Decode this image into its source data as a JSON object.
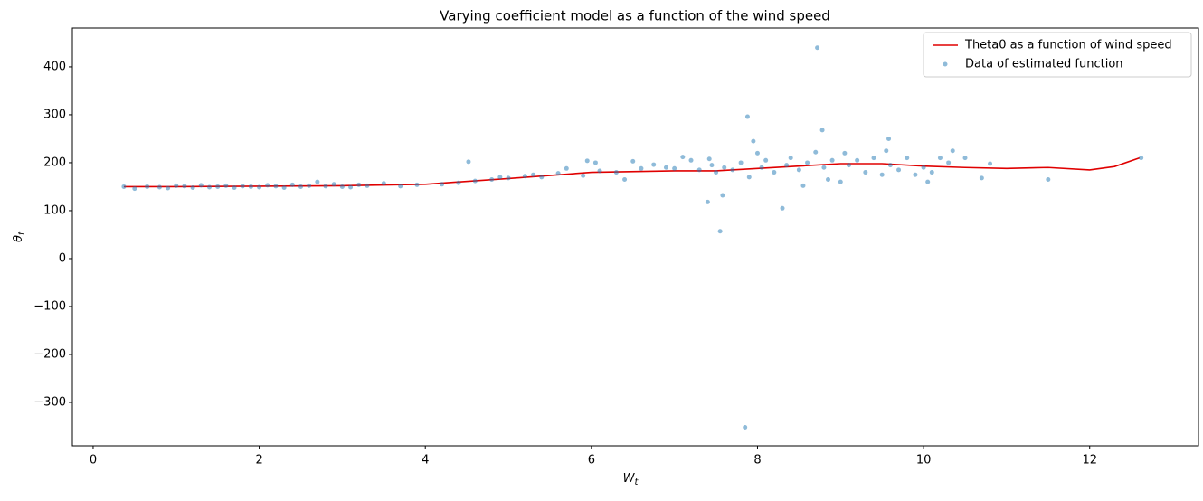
{
  "chart_data": {
    "type": "scatter",
    "title": "Varying coefficient model as a function of the wind speed",
    "xlabel": [
      "W",
      "t"
    ],
    "ylabel": [
      "θ",
      "t"
    ],
    "xlim": [
      -0.25,
      13.31
    ],
    "ylim": [
      -390.6,
      481
    ],
    "xticks": [
      0,
      2,
      4,
      6,
      8,
      10,
      12
    ],
    "yticks": [
      {
        "value": -300,
        "label": "−300"
      },
      {
        "value": -200,
        "label": "−200"
      },
      {
        "value": -100,
        "label": "−100"
      },
      0,
      100,
      200,
      300,
      400
    ],
    "legend": "upper right",
    "series": [
      {
        "name": "Theta0 as a function of wind speed",
        "type": "line",
        "color": "#e00000",
        "x": [
          0.37,
          1,
          2,
          3,
          4,
          5,
          6,
          7,
          7.5,
          8,
          8.5,
          9,
          9.5,
          10,
          10.5,
          11,
          11.5,
          12,
          12.3,
          12.6
        ],
        "values": [
          150,
          150,
          151,
          152,
          155,
          167,
          180,
          183,
          183,
          188,
          193,
          198,
          198,
          193,
          190,
          188,
          190,
          185,
          192,
          210
        ]
      },
      {
        "name": "Data of estimated function",
        "type": "scatter",
        "color": "#1f77b4",
        "x": [
          0.37,
          0.5,
          0.65,
          0.8,
          0.9,
          1.0,
          1.1,
          1.2,
          1.3,
          1.4,
          1.5,
          1.6,
          1.7,
          1.8,
          1.9,
          2.0,
          2.1,
          2.2,
          2.3,
          2.4,
          2.5,
          2.6,
          2.7,
          2.8,
          2.9,
          3.0,
          3.1,
          3.2,
          3.3,
          3.5,
          3.7,
          3.9,
          4.2,
          4.4,
          4.52,
          4.6,
          4.8,
          4.9,
          5.0,
          5.2,
          5.3,
          5.4,
          5.6,
          5.7,
          5.9,
          5.95,
          6.05,
          6.1,
          6.3,
          6.4,
          6.5,
          6.6,
          6.75,
          6.9,
          7.0,
          7.1,
          7.2,
          7.3,
          7.4,
          7.42,
          7.45,
          7.5,
          7.55,
          7.58,
          7.6,
          7.7,
          7.8,
          7.85,
          7.88,
          7.9,
          7.95,
          8.0,
          8.05,
          8.1,
          8.2,
          8.3,
          8.35,
          8.4,
          8.5,
          8.55,
          8.6,
          8.7,
          8.72,
          8.78,
          8.8,
          8.85,
          8.9,
          9.0,
          9.05,
          9.1,
          9.2,
          9.3,
          9.4,
          9.5,
          9.55,
          9.58,
          9.6,
          9.7,
          9.8,
          9.9,
          10.0,
          10.05,
          10.1,
          10.2,
          10.3,
          10.35,
          10.5,
          10.7,
          10.8,
          11.5,
          12.62
        ],
        "values": [
          150,
          146,
          150,
          149,
          147,
          152,
          151,
          148,
          153,
          149,
          150,
          152,
          148,
          151,
          150,
          149,
          153,
          151,
          148,
          154,
          150,
          152,
          160,
          151,
          155,
          150,
          149,
          154,
          152,
          157,
          151,
          154,
          155,
          158,
          202,
          162,
          165,
          170,
          168,
          172,
          175,
          170,
          178,
          188,
          173,
          204,
          200,
          183,
          180,
          165,
          203,
          188,
          196,
          190,
          188,
          212,
          205,
          185,
          118,
          208,
          195,
          180,
          57,
          132,
          190,
          185,
          200,
          -352,
          296,
          170,
          245,
          220,
          190,
          205,
          180,
          105,
          195,
          210,
          185,
          152,
          200,
          222,
          440,
          268,
          190,
          165,
          205,
          160,
          220,
          195,
          205,
          180,
          210,
          175,
          225,
          250,
          195,
          185,
          210,
          175,
          190,
          160,
          180,
          210,
          200,
          225,
          210,
          168,
          198,
          165,
          210
        ]
      }
    ]
  }
}
